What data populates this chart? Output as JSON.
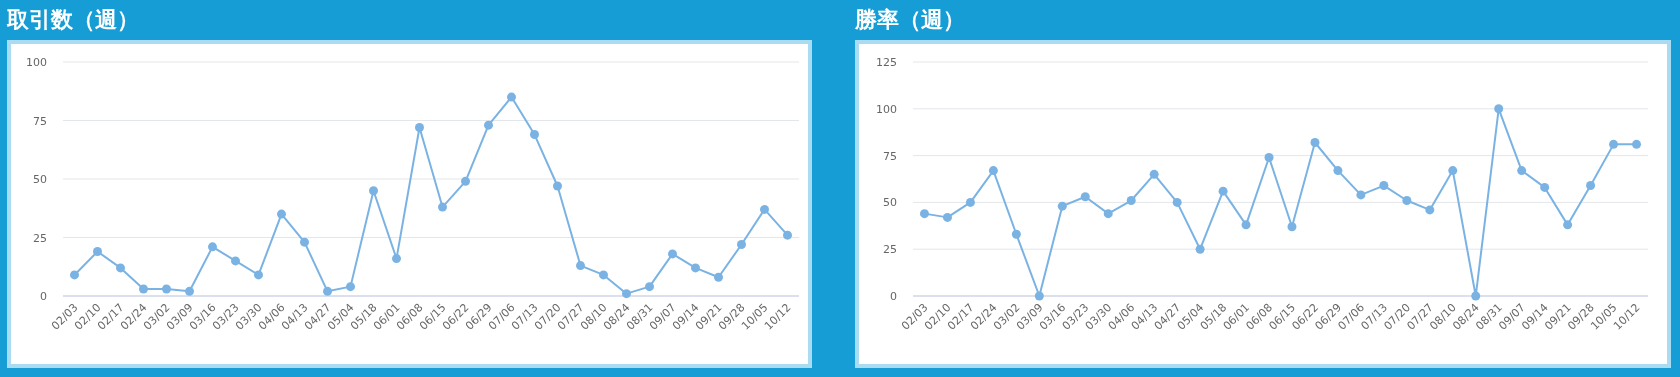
{
  "chart_data": [
    {
      "type": "line",
      "title": "取引数（週）",
      "categories": [
        "02/03",
        "02/10",
        "02/17",
        "02/24",
        "03/02",
        "03/09",
        "03/16",
        "03/23",
        "03/30",
        "04/06",
        "04/13",
        "04/27",
        "05/04",
        "05/18",
        "06/01",
        "06/08",
        "06/15",
        "06/22",
        "06/29",
        "07/06",
        "07/13",
        "07/20",
        "07/27",
        "08/10",
        "08/24",
        "08/31",
        "09/07",
        "09/14",
        "09/21",
        "09/28",
        "10/05",
        "10/12"
      ],
      "series": [
        {
          "color": "#7ab3e3",
          "values": [
            9,
            19,
            12,
            3,
            3,
            2,
            21,
            15,
            9,
            35,
            23,
            2,
            4,
            45,
            16,
            72,
            38,
            49,
            73,
            85,
            69,
            47,
            13,
            9,
            1,
            4,
            18,
            12,
            8,
            22,
            37,
            26
          ]
        }
      ],
      "ylim": [
        0,
        100
      ],
      "yticks": [
        0,
        25,
        50,
        75,
        100
      ],
      "grid": "y",
      "marker": "circle"
    },
    {
      "type": "line",
      "title": "勝率（週）",
      "categories": [
        "02/03",
        "02/10",
        "02/17",
        "02/24",
        "03/02",
        "03/09",
        "03/16",
        "03/23",
        "03/30",
        "04/06",
        "04/13",
        "04/27",
        "05/04",
        "05/18",
        "06/01",
        "06/08",
        "06/15",
        "06/22",
        "06/29",
        "07/06",
        "07/13",
        "07/20",
        "07/27",
        "08/10",
        "08/24",
        "08/31",
        "09/07",
        "09/14",
        "09/21",
        "09/28",
        "10/05",
        "10/12"
      ],
      "series": [
        {
          "color": "#7ab3e3",
          "values": [
            44,
            42,
            50,
            67,
            33,
            0,
            48,
            53,
            44,
            51,
            65,
            50,
            25,
            56,
            38,
            74,
            37,
            82,
            67,
            54,
            59,
            51,
            46,
            67,
            0,
            100,
            67,
            58,
            38,
            59,
            81,
            81
          ]
        }
      ],
      "ylim": [
        0,
        125
      ],
      "yticks": [
        0,
        25,
        50,
        75,
        100,
        125
      ],
      "grid": "y",
      "marker": "circle"
    }
  ]
}
